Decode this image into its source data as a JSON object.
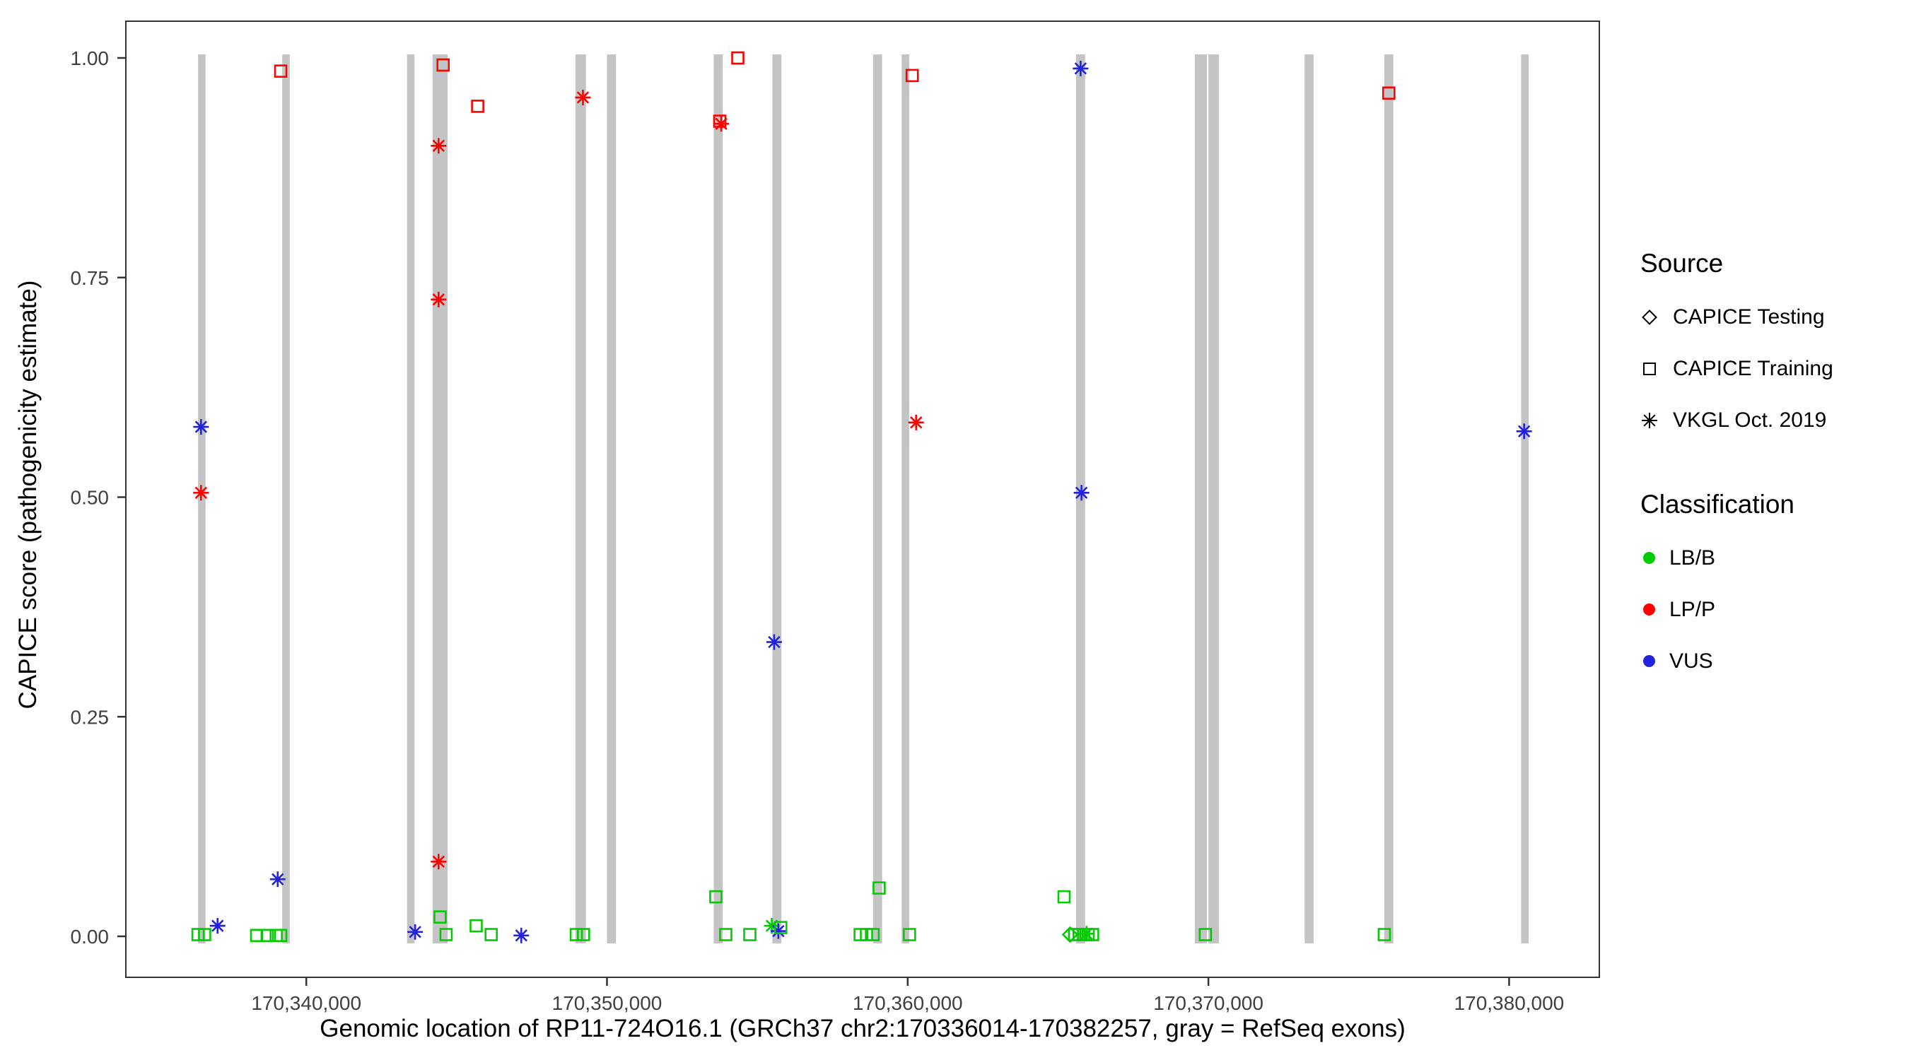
{
  "chart_data": {
    "type": "scatter",
    "xlabel": "Genomic location of RP11-724O16.1 (GRCh37 chr2:170336014-170382257, gray = RefSeq exons)",
    "ylabel": "CAPICE score (pathogenicity estimate)",
    "xlim": [
      170334000,
      170383000
    ],
    "ylim": [
      0,
      1
    ],
    "grid": "off",
    "x_ticks": [
      {
        "value": 170340000,
        "label": "170,340,000"
      },
      {
        "value": 170350000,
        "label": "170,350,000"
      },
      {
        "value": 170360000,
        "label": "170,360,000"
      },
      {
        "value": 170370000,
        "label": "170,370,000"
      },
      {
        "value": 170380000,
        "label": "170,380,000"
      }
    ],
    "y_ticks": [
      {
        "value": 0.0,
        "label": "0.00"
      },
      {
        "value": 0.25,
        "label": "0.25"
      },
      {
        "value": 0.5,
        "label": "0.50"
      },
      {
        "value": 0.75,
        "label": "0.75"
      },
      {
        "value": 1.0,
        "label": "1.00"
      }
    ],
    "exon_color": "#C4C4C4",
    "exons": [
      {
        "start": 170336400,
        "end": 170336650
      },
      {
        "start": 170339200,
        "end": 170339450
      },
      {
        "start": 170343350,
        "end": 170343600
      },
      {
        "start": 170344200,
        "end": 170344700
      },
      {
        "start": 170348950,
        "end": 170349300
      },
      {
        "start": 170350000,
        "end": 170350300
      },
      {
        "start": 170353550,
        "end": 170353850
      },
      {
        "start": 170355500,
        "end": 170355800
      },
      {
        "start": 170358850,
        "end": 170359150
      },
      {
        "start": 170359800,
        "end": 170360050
      },
      {
        "start": 170365600,
        "end": 170365900
      },
      {
        "start": 170369550,
        "end": 170369950
      },
      {
        "start": 170370000,
        "end": 170370350
      },
      {
        "start": 170373200,
        "end": 170373500
      },
      {
        "start": 170375850,
        "end": 170376150
      },
      {
        "start": 170380400,
        "end": 170380650
      }
    ],
    "classification_colors": {
      "LB/B": "#00CC00",
      "LP/P": "#FF0000",
      "VUS": "#2222DD"
    },
    "points": [
      {
        "x": 170336500,
        "y": 0.58,
        "source": "vkgl",
        "classification": "VUS"
      },
      {
        "x": 170336500,
        "y": 0.505,
        "source": "vkgl",
        "classification": "LP/P"
      },
      {
        "x": 170337050,
        "y": 0.012,
        "source": "vkgl",
        "classification": "VUS"
      },
      {
        "x": 170339050,
        "y": 0.065,
        "source": "vkgl",
        "classification": "VUS"
      },
      {
        "x": 170343620,
        "y": 0.005,
        "source": "vkgl",
        "classification": "VUS"
      },
      {
        "x": 170344400,
        "y": 0.9,
        "source": "vkgl",
        "classification": "LP/P"
      },
      {
        "x": 170344400,
        "y": 0.725,
        "source": "vkgl",
        "classification": "LP/P"
      },
      {
        "x": 170344400,
        "y": 0.085,
        "source": "vkgl",
        "classification": "LP/P"
      },
      {
        "x": 170347150,
        "y": 0.001,
        "source": "vkgl",
        "classification": "VUS"
      },
      {
        "x": 170349200,
        "y": 0.955,
        "source": "vkgl",
        "classification": "LP/P"
      },
      {
        "x": 170353800,
        "y": 0.925,
        "source": "vkgl",
        "classification": "LP/P"
      },
      {
        "x": 170355560,
        "y": 0.335,
        "source": "vkgl",
        "classification": "VUS"
      },
      {
        "x": 170355480,
        "y": 0.012,
        "source": "vkgl",
        "classification": "LB/B"
      },
      {
        "x": 170355700,
        "y": 0.006,
        "source": "vkgl",
        "classification": "VUS"
      },
      {
        "x": 170360280,
        "y": 0.585,
        "source": "vkgl",
        "classification": "LP/P"
      },
      {
        "x": 170365750,
        "y": 0.988,
        "source": "vkgl",
        "classification": "VUS"
      },
      {
        "x": 170365780,
        "y": 0.505,
        "source": "vkgl",
        "classification": "VUS"
      },
      {
        "x": 170365950,
        "y": 0.003,
        "source": "vkgl",
        "classification": "LB/B"
      },
      {
        "x": 170380500,
        "y": 0.575,
        "source": "vkgl",
        "classification": "VUS"
      },
      {
        "x": 170339150,
        "y": 0.985,
        "source": "training",
        "classification": "LP/P"
      },
      {
        "x": 170344550,
        "y": 0.992,
        "source": "training",
        "classification": "LP/P"
      },
      {
        "x": 170345700,
        "y": 0.945,
        "source": "training",
        "classification": "LP/P"
      },
      {
        "x": 170353750,
        "y": 0.928,
        "source": "training",
        "classification": "LP/P"
      },
      {
        "x": 170354350,
        "y": 1.0,
        "source": "training",
        "classification": "LP/P"
      },
      {
        "x": 170360150,
        "y": 0.98,
        "source": "training",
        "classification": "LP/P"
      },
      {
        "x": 170376000,
        "y": 0.96,
        "source": "training",
        "classification": "LP/P"
      },
      {
        "x": 170336400,
        "y": 0.002,
        "source": "training",
        "classification": "LB/B"
      },
      {
        "x": 170336620,
        "y": 0.002,
        "source": "training",
        "classification": "LB/B"
      },
      {
        "x": 170338350,
        "y": 0.001,
        "source": "training",
        "classification": "LB/B"
      },
      {
        "x": 170338700,
        "y": 0.001,
        "source": "training",
        "classification": "LB/B"
      },
      {
        "x": 170339000,
        "y": 0.001,
        "source": "training",
        "classification": "LB/B"
      },
      {
        "x": 170339150,
        "y": 0.001,
        "source": "training",
        "classification": "LB/B"
      },
      {
        "x": 170344450,
        "y": 0.022,
        "source": "training",
        "classification": "LB/B"
      },
      {
        "x": 170344650,
        "y": 0.002,
        "source": "training",
        "classification": "LB/B"
      },
      {
        "x": 170345650,
        "y": 0.012,
        "source": "training",
        "classification": "LB/B"
      },
      {
        "x": 170346150,
        "y": 0.002,
        "source": "training",
        "classification": "LB/B"
      },
      {
        "x": 170348980,
        "y": 0.002,
        "source": "training",
        "classification": "LB/B"
      },
      {
        "x": 170349220,
        "y": 0.002,
        "source": "training",
        "classification": "LB/B"
      },
      {
        "x": 170353620,
        "y": 0.045,
        "source": "training",
        "classification": "LB/B"
      },
      {
        "x": 170353950,
        "y": 0.002,
        "source": "training",
        "classification": "LB/B"
      },
      {
        "x": 170354750,
        "y": 0.002,
        "source": "training",
        "classification": "LB/B"
      },
      {
        "x": 170355780,
        "y": 0.01,
        "source": "training",
        "classification": "LB/B"
      },
      {
        "x": 170358420,
        "y": 0.002,
        "source": "training",
        "classification": "LB/B"
      },
      {
        "x": 170358630,
        "y": 0.002,
        "source": "training",
        "classification": "LB/B"
      },
      {
        "x": 170358850,
        "y": 0.002,
        "source": "training",
        "classification": "LB/B"
      },
      {
        "x": 170359050,
        "y": 0.055,
        "source": "training",
        "classification": "LB/B"
      },
      {
        "x": 170360060,
        "y": 0.002,
        "source": "training",
        "classification": "LB/B"
      },
      {
        "x": 170365200,
        "y": 0.045,
        "source": "training",
        "classification": "LB/B"
      },
      {
        "x": 170365550,
        "y": 0.002,
        "source": "training",
        "classification": "LB/B"
      },
      {
        "x": 170365700,
        "y": 0.002,
        "source": "training",
        "classification": "LB/B"
      },
      {
        "x": 170365850,
        "y": 0.002,
        "source": "training",
        "classification": "LB/B"
      },
      {
        "x": 170366000,
        "y": 0.002,
        "source": "training",
        "classification": "LB/B"
      },
      {
        "x": 170366150,
        "y": 0.002,
        "source": "training",
        "classification": "LB/B"
      },
      {
        "x": 170369900,
        "y": 0.002,
        "source": "training",
        "classification": "LB/B"
      },
      {
        "x": 170375850,
        "y": 0.002,
        "source": "training",
        "classification": "LB/B"
      },
      {
        "x": 170365400,
        "y": 0.002,
        "source": "testing",
        "classification": "LB/B"
      }
    ],
    "legend": {
      "source": {
        "title": "Source",
        "items": [
          {
            "shape": "diamond",
            "label": "CAPICE Testing"
          },
          {
            "shape": "square",
            "label": "CAPICE Training"
          },
          {
            "shape": "asterisk",
            "label": "VKGL Oct. 2019"
          }
        ]
      },
      "classification": {
        "title": "Classification",
        "items": [
          {
            "color_key": "LB/B",
            "label": "LB/B"
          },
          {
            "color_key": "LP/P",
            "label": "LP/P"
          },
          {
            "color_key": "VUS",
            "label": "VUS"
          }
        ]
      }
    }
  }
}
